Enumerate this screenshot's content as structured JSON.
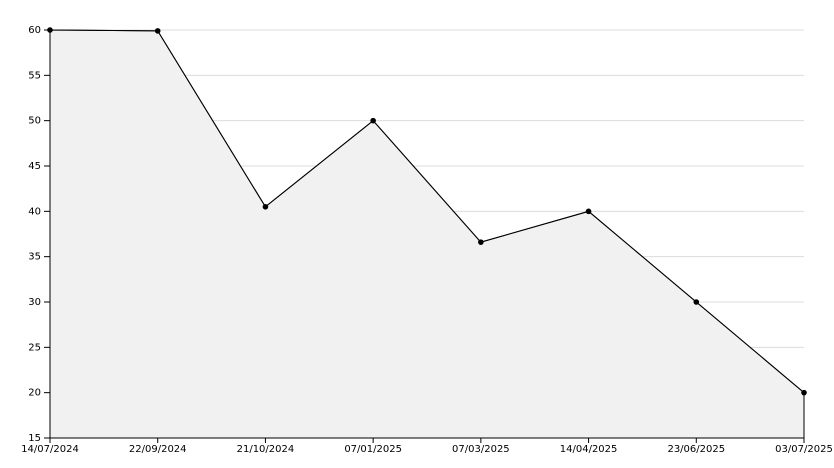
{
  "chart_data": {
    "type": "area",
    "categories": [
      "14/07/2024",
      "22/09/2024",
      "21/10/2024",
      "07/01/2025",
      "07/03/2025",
      "14/04/2025",
      "23/06/2025",
      "03/07/2025"
    ],
    "values": [
      60,
      59.9,
      40.5,
      50,
      36.6,
      40,
      30,
      20
    ],
    "color": "#000000",
    "fill": "#f1f1f1",
    "ylim": [
      15,
      60
    ],
    "yticks": [
      15,
      20,
      25,
      30,
      35,
      40,
      45,
      50,
      55,
      60
    ],
    "grid": true
  }
}
